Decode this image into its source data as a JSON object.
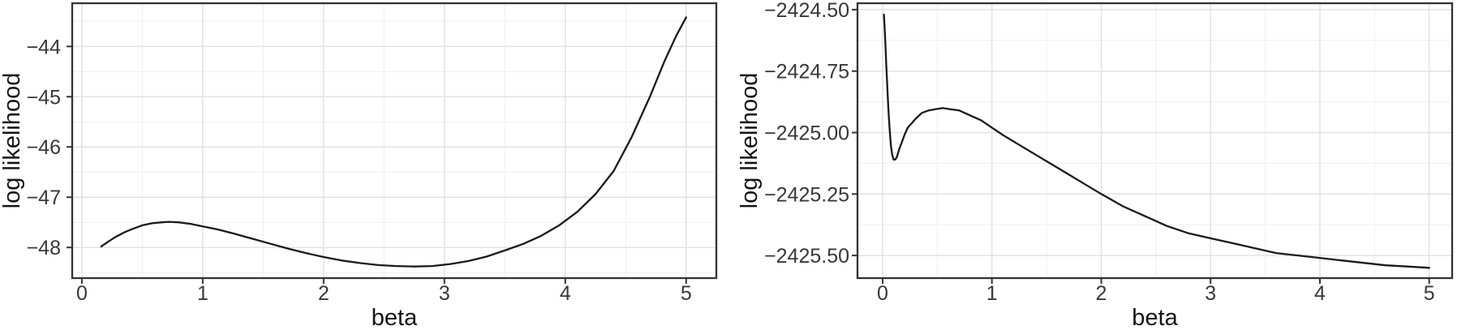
{
  "figure": {
    "background": "#ffffff",
    "description": "Two log-likelihood profile curves versus beta"
  },
  "style": {
    "panel_bg": "#ffffff",
    "panel_border": "#333333",
    "grid_major": "#e2e2e2",
    "grid_minor": "#efefef",
    "tick_mark_color": "#333333",
    "tick_text_color": "#383838",
    "axis_title_color": "#141414",
    "curve_color": "#1a1a1a"
  },
  "chart_data": [
    {
      "type": "line",
      "title": "",
      "xlabel": "beta",
      "ylabel": "log likelihood",
      "grid": true,
      "legend_position": "none",
      "xlim": [
        -0.08,
        5.25
      ],
      "ylim": [
        -48.61,
        -43.14
      ],
      "x_ticks": [
        {
          "v": 0,
          "label": "0"
        },
        {
          "v": 1,
          "label": "1"
        },
        {
          "v": 2,
          "label": "2"
        },
        {
          "v": 3,
          "label": "3"
        },
        {
          "v": 4,
          "label": "4"
        },
        {
          "v": 5,
          "label": "5"
        }
      ],
      "y_ticks": [
        {
          "v": -44,
          "label": "−44"
        },
        {
          "v": -45,
          "label": "−45"
        },
        {
          "v": -46,
          "label": "−46"
        },
        {
          "v": -47,
          "label": "−47"
        },
        {
          "v": -48,
          "label": "−48"
        }
      ],
      "x_minor": [
        0.5,
        1.5,
        2.5,
        3.5,
        4.5
      ],
      "y_minor": [
        -48.5,
        -47.5,
        -46.5,
        -45.5,
        -44.5,
        -43.5
      ],
      "series": [
        {
          "name": "log likelihood",
          "color": "#1a1a1a",
          "x": [
            0.16,
            0.22,
            0.28,
            0.35,
            0.42,
            0.5,
            0.58,
            0.66,
            0.72,
            0.8,
            0.9,
            1.0,
            1.12,
            1.25,
            1.4,
            1.55,
            1.7,
            1.85,
            2.0,
            2.15,
            2.3,
            2.45,
            2.6,
            2.75,
            2.9,
            3.05,
            3.2,
            3.35,
            3.5,
            3.65,
            3.8,
            3.95,
            4.1,
            4.25,
            4.4,
            4.55,
            4.7,
            4.82,
            4.92,
            5.0
          ],
          "y": [
            -47.98,
            -47.88,
            -47.79,
            -47.7,
            -47.63,
            -47.56,
            -47.52,
            -47.5,
            -47.49,
            -47.5,
            -47.53,
            -47.58,
            -47.64,
            -47.72,
            -47.82,
            -47.92,
            -48.02,
            -48.11,
            -48.19,
            -48.26,
            -48.31,
            -48.35,
            -48.37,
            -48.38,
            -48.37,
            -48.33,
            -48.27,
            -48.18,
            -48.06,
            -47.93,
            -47.77,
            -47.56,
            -47.29,
            -46.94,
            -46.48,
            -45.8,
            -45.0,
            -44.3,
            -43.78,
            -43.42
          ]
        }
      ]
    },
    {
      "type": "line",
      "title": "",
      "xlabel": "beta",
      "ylabel": "log likelihood",
      "grid": true,
      "legend_position": "none",
      "xlim": [
        -0.23,
        5.21
      ],
      "ylim": [
        -2425.592,
        -2424.474
      ],
      "x_ticks": [
        {
          "v": 0,
          "label": "0"
        },
        {
          "v": 1,
          "label": "1"
        },
        {
          "v": 2,
          "label": "2"
        },
        {
          "v": 3,
          "label": "3"
        },
        {
          "v": 4,
          "label": "4"
        },
        {
          "v": 5,
          "label": "5"
        }
      ],
      "y_ticks": [
        {
          "v": -2424.5,
          "label": "−2424.50"
        },
        {
          "v": -2424.75,
          "label": "−2424.75"
        },
        {
          "v": -2425.0,
          "label": "−2425.00"
        },
        {
          "v": -2425.25,
          "label": "−2425.25"
        },
        {
          "v": -2425.5,
          "label": "−2425.50"
        }
      ],
      "x_minor": [
        0.5,
        1.5,
        2.5,
        3.5,
        4.5
      ],
      "y_minor": [
        -2425.375,
        -2425.125,
        -2424.875,
        -2424.625
      ],
      "series": [
        {
          "name": "log likelihood",
          "color": "#1a1a1a",
          "x": [
            0.012,
            0.018,
            0.025,
            0.033,
            0.042,
            0.052,
            0.063,
            0.075,
            0.088,
            0.1,
            0.115,
            0.13,
            0.15,
            0.175,
            0.2,
            0.23,
            0.27,
            0.31,
            0.36,
            0.42,
            0.48,
            0.55,
            0.62,
            0.7,
            0.8,
            0.9,
            1.0,
            1.1,
            1.25,
            1.4,
            1.55,
            1.7,
            1.85,
            2.0,
            2.2,
            2.4,
            2.6,
            2.8,
            3.0,
            3.2,
            3.4,
            3.6,
            3.8,
            4.0,
            4.2,
            4.4,
            4.6,
            4.8,
            5.0
          ],
          "y": [
            -2424.52,
            -2424.57,
            -2424.64,
            -2424.72,
            -2424.81,
            -2424.9,
            -2424.98,
            -2425.05,
            -2425.09,
            -2425.11,
            -2425.11,
            -2425.1,
            -2425.07,
            -2425.04,
            -2425.01,
            -2424.98,
            -2424.96,
            -2424.94,
            -2424.92,
            -2424.91,
            -2424.905,
            -2424.9,
            -2424.905,
            -2424.91,
            -2424.93,
            -2424.95,
            -2424.98,
            -2425.01,
            -2425.05,
            -2425.09,
            -2425.13,
            -2425.17,
            -2425.21,
            -2425.25,
            -2425.3,
            -2425.34,
            -2425.38,
            -2425.41,
            -2425.43,
            -2425.45,
            -2425.47,
            -2425.49,
            -2425.5,
            -2425.51,
            -2425.52,
            -2425.53,
            -2425.54,
            -2425.545,
            -2425.55
          ]
        }
      ]
    }
  ]
}
